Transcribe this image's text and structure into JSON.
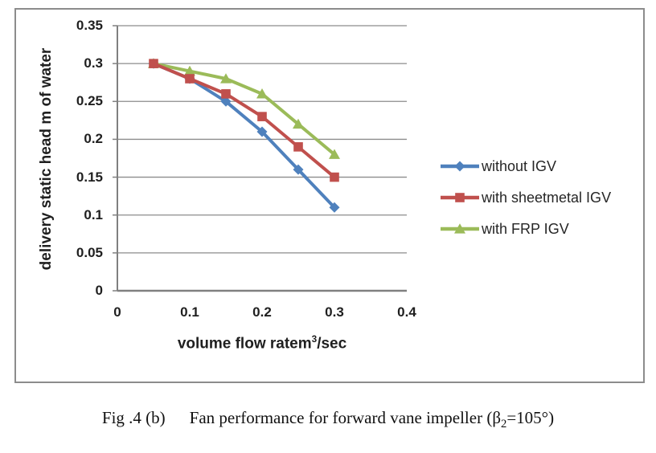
{
  "caption": {
    "fig_label": "Fig .4 (b)",
    "text_before_sub": "Fan performance for forward vane impeller (β",
    "sub": "2",
    "text_after_sub": "=105°)"
  },
  "chart_data": {
    "type": "line",
    "x": [
      0.05,
      0.1,
      0.15,
      0.2,
      0.25,
      0.3
    ],
    "series": [
      {
        "name": "without IGV",
        "marker": "diamond",
        "color": "#4F81BD",
        "values": [
          0.3,
          0.28,
          0.25,
          0.21,
          0.16,
          0.11
        ]
      },
      {
        "name": "with sheetmetal IGV",
        "marker": "square",
        "color": "#C0504D",
        "values": [
          0.3,
          0.28,
          0.26,
          0.23,
          0.19,
          0.15
        ]
      },
      {
        "name": "with FRP IGV",
        "marker": "triangle",
        "color": "#9BBB59",
        "values": [
          0.3,
          0.29,
          0.28,
          0.26,
          0.22,
          0.18
        ]
      }
    ],
    "draw_order": [
      0,
      2,
      1
    ],
    "xlabel": {
      "before_sup": "volume flow ratem",
      "sup": "3",
      "after_sup": "/sec"
    },
    "ylabel": "delivery static head m of water",
    "xlim": [
      0,
      0.4
    ],
    "ylim": [
      0,
      0.35
    ],
    "x_tick_values": [
      0,
      0.1,
      0.2,
      0.3,
      0.4
    ],
    "x_tick_labels": [
      "0",
      "0.1",
      "0.2",
      "0.3",
      "0.4"
    ],
    "y_tick_values": [
      0.35,
      0.3,
      0.25,
      0.2,
      0.15,
      0.1,
      0.05,
      0
    ],
    "y_tick_labels": [
      "0.35",
      "0.3",
      "0.25",
      "0.2",
      "0.15",
      "0.1",
      "0.05",
      "0"
    ],
    "grid": "horizontal-major",
    "legend_position": "right-middle"
  },
  "colors": {
    "gridline": "#8c8c8c",
    "axis": "#808080",
    "frame_border": "#8c8c8c",
    "text": "#1f1f1f"
  }
}
